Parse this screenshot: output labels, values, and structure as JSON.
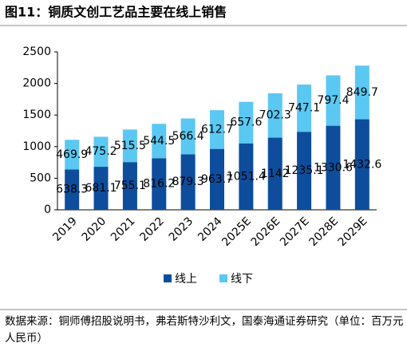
{
  "chart_data": {
    "type": "stacked_bar",
    "title": "图11：铜质文创工艺品主要在线上销售",
    "categories": [
      "2019",
      "2020",
      "2021",
      "2022",
      "2023",
      "2024",
      "2025E",
      "2026E",
      "2027E",
      "2028E",
      "2029E"
    ],
    "series": [
      {
        "name": "线上",
        "color": "#0d4d9c",
        "values": [
          638.3,
          681.1,
          755.1,
          816.2,
          879.3,
          963.7,
          1051.4,
          1142,
          1235.1,
          1330.6,
          1432.6
        ]
      },
      {
        "name": "线下",
        "color": "#5ac8f2",
        "values": [
          469.9,
          475.2,
          515.5,
          544.5,
          566.4,
          612.7,
          657.6,
          702.3,
          747.1,
          797.4,
          849.7
        ]
      }
    ],
    "ylim": [
      0,
      2500
    ],
    "yticks": [
      0,
      500,
      1000,
      1500,
      2000,
      2500
    ],
    "grid": false,
    "source": "数据来源：铜师傅招股说明书，弗若斯特沙利文，国泰海通证券研究（单位：百万元人民币）"
  }
}
